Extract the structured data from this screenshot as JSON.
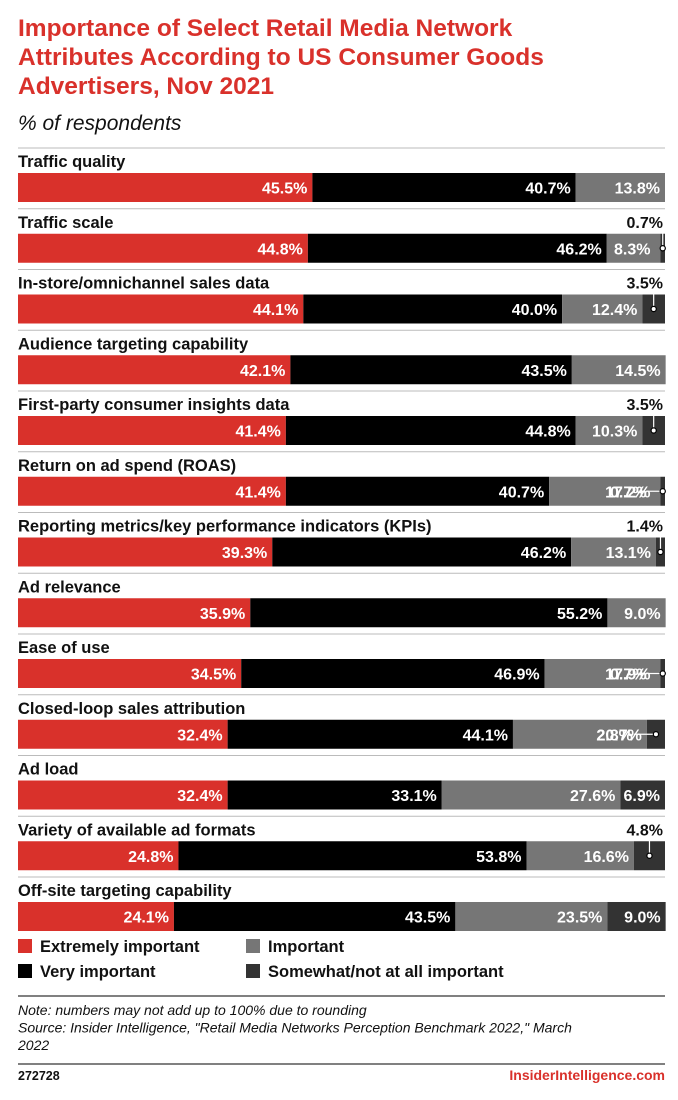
{
  "header": {
    "title_lines": [
      "Importance of Select Retail Media Network",
      "Attributes According to US Consumer Goods",
      "Advertisers, Nov 2021"
    ],
    "subtitle": "% of respondents"
  },
  "chart_data": {
    "type": "bar",
    "orientation": "horizontal",
    "stacked": true,
    "xlim": [
      0,
      100
    ],
    "grid": false,
    "legend_position": "bottom",
    "categories": [
      "Traffic quality",
      "Traffic scale",
      "In-store/omnichannel sales data",
      "Audience targeting capability",
      "First-party consumer insights data",
      "Return on ad spend (ROAS)",
      "Reporting metrics/key performance indicators (KPIs)",
      "Ad relevance",
      "Ease of use",
      "Closed-loop sales attribution",
      "Ad load",
      "Variety of available ad formats",
      "Off-site targeting capability"
    ],
    "series": [
      {
        "name": "Extremely important",
        "color": "#d9312b",
        "values": [
          45.5,
          44.8,
          44.1,
          42.1,
          41.4,
          41.4,
          39.3,
          35.9,
          34.5,
          32.4,
          32.4,
          24.8,
          24.1
        ]
      },
      {
        "name": "Very important",
        "color": "#000000",
        "values": [
          40.7,
          46.2,
          40.0,
          43.5,
          44.8,
          40.7,
          46.2,
          55.2,
          46.9,
          44.1,
          33.1,
          53.8,
          43.5
        ]
      },
      {
        "name": "Important",
        "color": "#767676",
        "values": [
          13.8,
          8.3,
          12.4,
          14.5,
          10.3,
          17.2,
          13.1,
          9.0,
          17.9,
          20.7,
          27.6,
          16.6,
          23.5
        ]
      },
      {
        "name": "Somewhat/not at all important",
        "color": "#333333",
        "values": [
          null,
          0.7,
          3.5,
          null,
          3.5,
          0.7,
          1.4,
          null,
          0.7,
          2.8,
          6.9,
          4.8,
          9.0
        ]
      }
    ],
    "legend_order": [
      "Extremely important",
      "Important",
      "Very important",
      "Somewhat/not at all important"
    ]
  },
  "footer": {
    "note_lines": [
      "Note: numbers may not add up to 100% due to rounding",
      "Source: Insider Intelligence, \"Retail Media Networks Perception Benchmark 2022,\" March",
      "2022"
    ],
    "chart_id": "272728",
    "brand": "InsiderIntelligence.com",
    "brand_color": "#d9312b"
  }
}
